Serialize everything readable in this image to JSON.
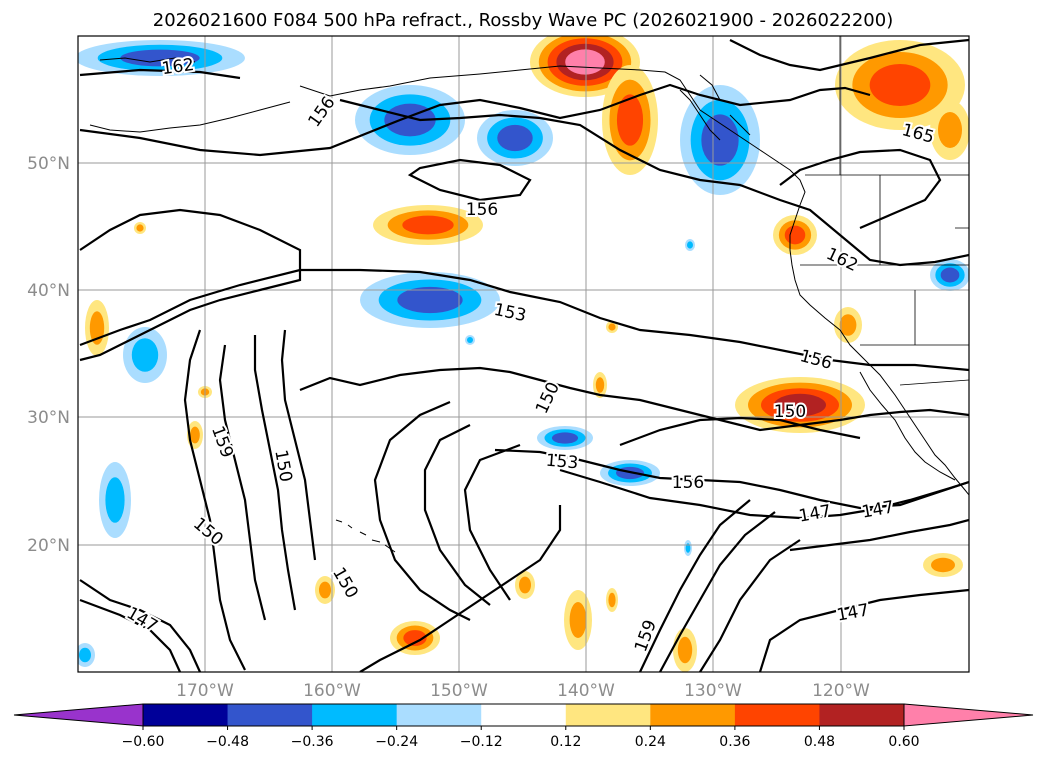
{
  "title": "2026021600 F084 500 hPa refract., Rossby Wave PC (2026021900 - 2026022200)",
  "lat_labels": [
    "50°N",
    "40°N",
    "30°N",
    "20°N"
  ],
  "lon_labels": [
    "170°W",
    "160°W",
    "150°W",
    "140°W",
    "130°W",
    "120°W"
  ],
  "contour_labels": [
    "162",
    "156",
    "156",
    "165",
    "162",
    "153",
    "156",
    "150",
    "150",
    "159",
    "150",
    "153",
    "156",
    "150",
    "147",
    "150",
    "147",
    "159",
    "147",
    "147"
  ],
  "colorbar": {
    "ticks": [
      "−0.60",
      "−0.48",
      "−0.36",
      "−0.24",
      "−0.12",
      "0.12",
      "0.24",
      "0.36",
      "0.48",
      "0.60"
    ],
    "colors": [
      "#9933cc",
      "#000099",
      "#3355cc",
      "#00bbff",
      "#aaddff",
      "#ffffff",
      "#ffe680",
      "#ff9900",
      "#ff4400",
      "#b22222",
      "#ff80aa"
    ]
  },
  "palette": {
    "pink": "#ff80aa",
    "darkred": "#b22222",
    "red": "#ff4400",
    "orange": "#ff9900",
    "yellow": "#ffe680",
    "lightblue": "#aaddff",
    "cyan": "#00bbff",
    "blue": "#3355cc",
    "navy": "#000099"
  }
}
